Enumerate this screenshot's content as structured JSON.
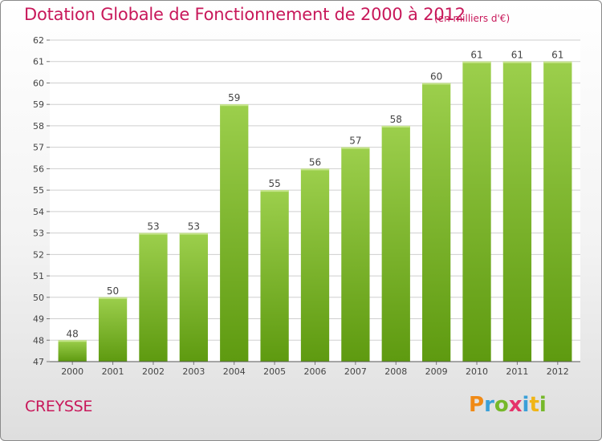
{
  "title": "Dotation Globale de Fonctionnement de 2000 à 2012",
  "unit": "(en milliers d'€)",
  "commune": "CREYSSE",
  "logo": {
    "text": "Proxiti",
    "colors": [
      "#f08a16",
      "#3aa0d8",
      "#76b82a",
      "#e5336a",
      "#3aa0d8",
      "#f0b516",
      "#76b82a"
    ]
  },
  "colors": {
    "accent": "#c8185a",
    "bar_top": "#9ccf4c",
    "bar_bottom": "#5e9a10",
    "grid": "#cfcfcf"
  },
  "chart_data": {
    "type": "bar",
    "categories": [
      "2000",
      "2001",
      "2002",
      "2003",
      "2004",
      "2005",
      "2006",
      "2007",
      "2008",
      "2009",
      "2010",
      "2011",
      "2012"
    ],
    "values": [
      48,
      50,
      53,
      53,
      59,
      55,
      56,
      57,
      58,
      60,
      61,
      61,
      61
    ],
    "ylim": [
      47,
      62
    ],
    "yticks": [
      47,
      48,
      49,
      50,
      51,
      52,
      53,
      54,
      55,
      56,
      57,
      58,
      59,
      60,
      61,
      62
    ],
    "grid": true,
    "data_labels": true
  }
}
